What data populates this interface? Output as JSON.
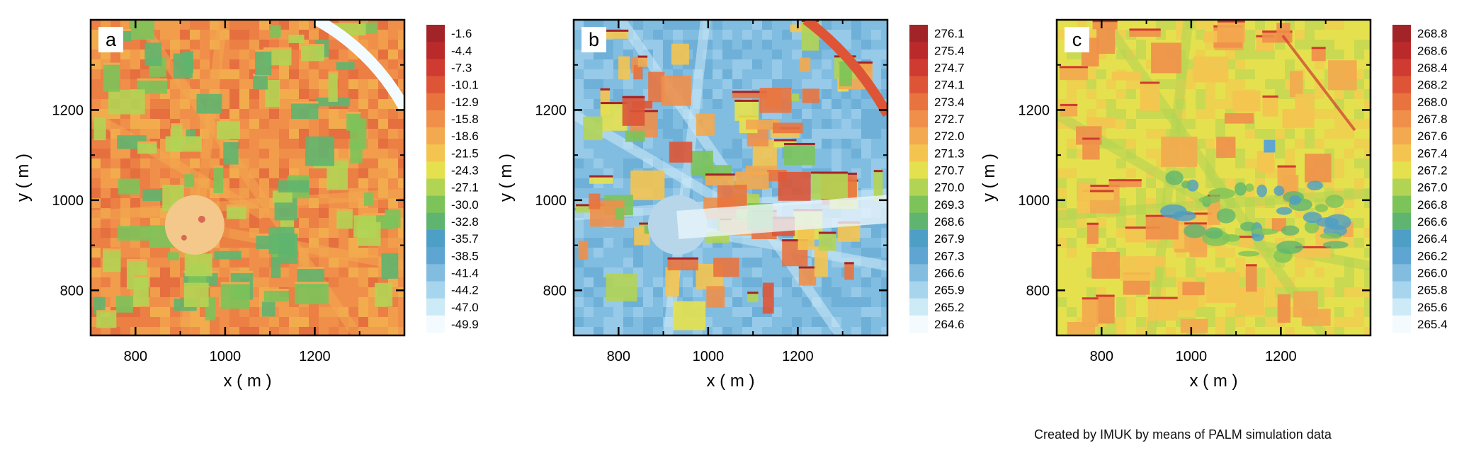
{
  "credit": "Created by IMUK by means of PALM simulation data",
  "colors": {
    "scale": [
      "#f4fbfe",
      "#cdeaf7",
      "#a7d5ee",
      "#82bde0",
      "#5ea5d2",
      "#4e9fc6",
      "#5fb56f",
      "#7cc35a",
      "#b2d454",
      "#e5e14e",
      "#f4c450",
      "#f3a94f",
      "#f08f4a",
      "#e8733f",
      "#dd5536",
      "#cf3b30",
      "#bb2a2a",
      "#a32428"
    ]
  },
  "chart_data": [
    {
      "type": "heatmap",
      "panel_label": "a",
      "xlabel": "x ( m )",
      "ylabel": "y ( m )",
      "xlim": [
        700,
        1400
      ],
      "ylim": [
        700,
        1400
      ],
      "xticks": [
        800,
        1000,
        1200
      ],
      "yticks": [
        800,
        1000,
        1200
      ],
      "colorbar_labels": [
        "-1.6",
        "-4.4",
        "-7.3",
        "-10.1",
        "-12.9",
        "-15.8",
        "-18.6",
        "-21.5",
        "-24.3",
        "-27.1",
        "-30.0",
        "-32.8",
        "-35.7",
        "-38.5",
        "-41.4",
        "-44.2",
        "-47.0",
        "-49.9"
      ],
      "colorbar_min": -49.9,
      "colorbar_max": -1.6,
      "grid": false
    },
    {
      "type": "heatmap",
      "panel_label": "b",
      "xlabel": "x ( m )",
      "ylabel": "y ( m )",
      "xlim": [
        700,
        1400
      ],
      "ylim": [
        700,
        1400
      ],
      "xticks": [
        800,
        1000,
        1200
      ],
      "yticks": [
        800,
        1000,
        1200
      ],
      "colorbar_labels": [
        "276.1",
        "275.4",
        "274.7",
        "274.1",
        "273.4",
        "272.7",
        "272.0",
        "271.3",
        "270.7",
        "270.0",
        "269.3",
        "268.6",
        "267.9",
        "267.3",
        "266.6",
        "265.9",
        "265.2",
        "264.6"
      ],
      "colorbar_min": 264.6,
      "colorbar_max": 276.1,
      "grid": false
    },
    {
      "type": "heatmap",
      "panel_label": "c",
      "xlabel": "x ( m )",
      "ylabel": "y ( m )",
      "xlim": [
        700,
        1400
      ],
      "ylim": [
        700,
        1400
      ],
      "xticks": [
        800,
        1000,
        1200
      ],
      "yticks": [
        800,
        1000,
        1200
      ],
      "colorbar_labels": [
        "268.8",
        "268.6",
        "268.4",
        "268.2",
        "268.0",
        "267.8",
        "267.6",
        "267.4",
        "267.2",
        "267.0",
        "266.8",
        "266.6",
        "266.4",
        "266.2",
        "266.0",
        "265.8",
        "265.6",
        "265.4"
      ],
      "colorbar_min": 265.4,
      "colorbar_max": 268.8,
      "grid": false
    }
  ]
}
